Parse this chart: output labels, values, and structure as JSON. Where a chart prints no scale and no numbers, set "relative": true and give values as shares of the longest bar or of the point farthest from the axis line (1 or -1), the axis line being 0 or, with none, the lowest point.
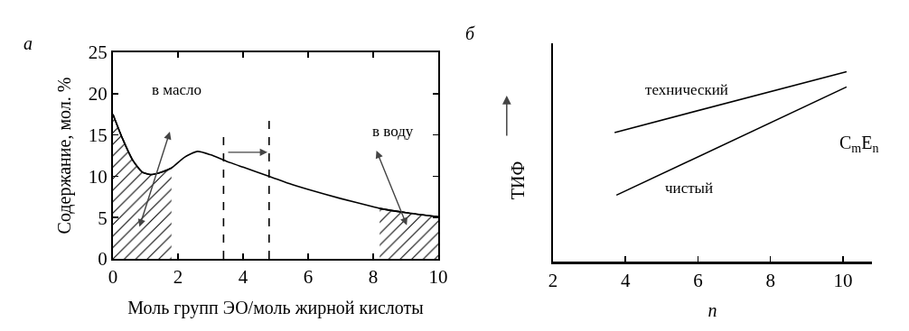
{
  "chart_data": [
    {
      "type": "line",
      "title": "а",
      "xlabel": "Моль групп ЭО/моль жирной кислоты",
      "ylabel": "Содержание, мол. %",
      "xlim": [
        0,
        10
      ],
      "xticks": [
        0,
        2,
        4,
        6,
        8,
        10
      ],
      "ylim": [
        0,
        25
      ],
      "yticks": [
        0,
        5,
        10,
        15,
        20,
        25
      ],
      "grid": false,
      "legend": false,
      "series": [
        {
          "color": "#000000",
          "x": [
            0,
            0.3,
            0.6,
            0.9,
            1.2,
            1.5,
            1.8,
            2.2,
            2.6,
            3,
            3.5,
            4,
            4.8,
            5.5,
            6,
            7,
            8,
            8.2,
            9,
            10
          ],
          "values": [
            17.5,
            14.5,
            12,
            10.5,
            10.2,
            10.5,
            11,
            12.3,
            13,
            12.6,
            11.8,
            11.1,
            10,
            9,
            8.4,
            7.3,
            6.3,
            6.1,
            5.6,
            5.1
          ]
        },
        {
          "type": "area",
          "color": "#000000",
          "x": [
            0,
            0.3,
            0.6,
            0.9,
            1.2,
            1.5,
            1.8
          ],
          "values": [
            17.5,
            14.5,
            12,
            10.5,
            10.2,
            10.5,
            11
          ]
        },
        {
          "type": "area",
          "color": "#000000",
          "x": [
            8.2,
            9,
            10
          ],
          "values": [
            6.1,
            5.6,
            5.1
          ]
        }
      ],
      "ref_lines": [
        {
          "axis": "x",
          "value": 3.4,
          "line_style": "dashed"
        },
        {
          "axis": "x",
          "value": 4.8,
          "line_style": "dashed"
        }
      ],
      "annotations": [
        "в масло",
        "в воду"
      ]
    },
    {
      "type": "line",
      "title": "б",
      "xlabel": "n",
      "ylabel": "ТИФ",
      "relative": true,
      "xlim": [
        2,
        10.8
      ],
      "xticks": [
        2,
        4,
        6,
        8,
        10
      ],
      "tick_labels": "x",
      "grid": false,
      "legend": false,
      "series": [
        {
          "name": "технический",
          "color": "#000000",
          "x": [
            3.7,
            10.1
          ],
          "values": [
            0.68,
            1.0
          ]
        },
        {
          "name": "чистый",
          "color": "#000000",
          "x": [
            3.75,
            10.1
          ],
          "values": [
            0.35,
            0.92
          ]
        }
      ],
      "annotations": [
        "C$_{m}$E$_{n}$"
      ]
    }
  ]
}
